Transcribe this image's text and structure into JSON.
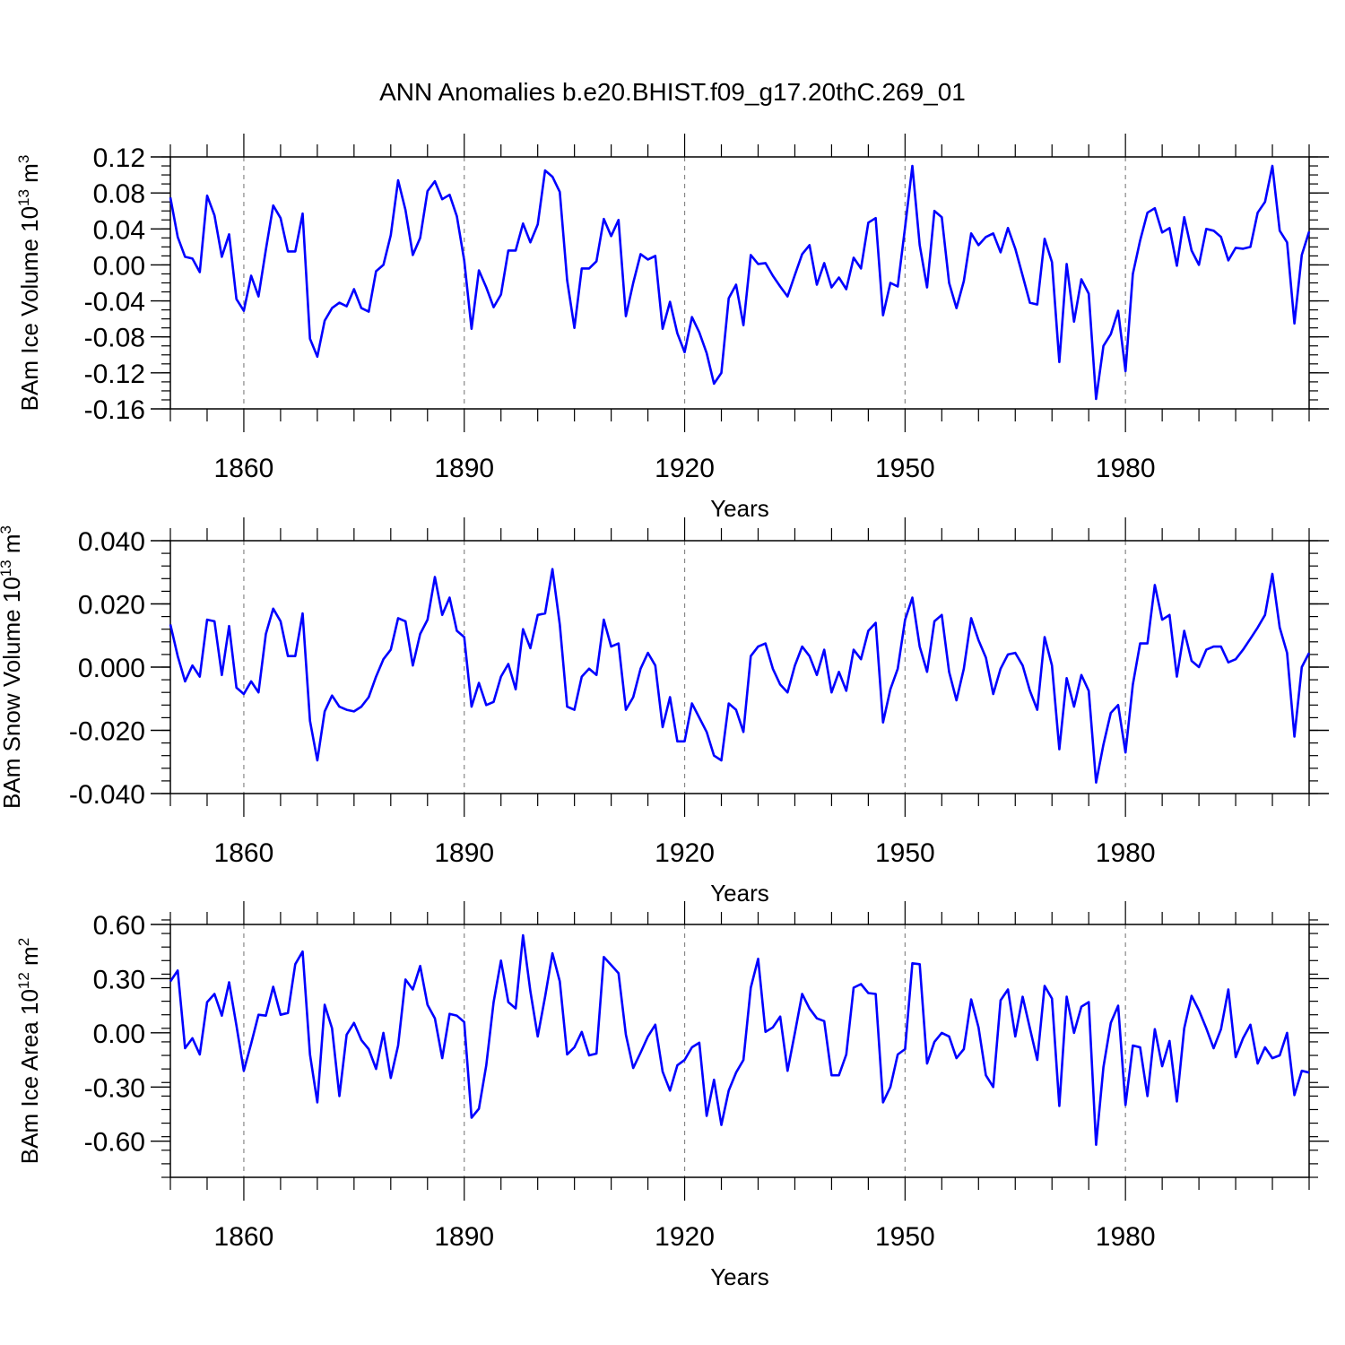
{
  "title": "ANN Anomalies b.e20.BHIST.f09_g17.20thC.269_01",
  "chart_data": [
    {
      "type": "line",
      "ylabel_main": "BAm Ice Volume 10",
      "ylabel_exp": "13",
      "ylabel_unit": " m",
      "ylabel_unit_exp": "3",
      "xlabel": "Years",
      "x_start": 1850,
      "x_end": 2005,
      "xticks": [
        1860,
        1890,
        1920,
        1950,
        1980
      ],
      "xtick_labels": [
        "1860",
        "1890",
        "1920",
        "1950",
        "1980"
      ],
      "ylim": [
        -0.16,
        0.12
      ],
      "yticks": [
        -0.16,
        -0.12,
        -0.08,
        -0.04,
        0.0,
        0.04,
        0.08,
        0.12
      ],
      "ytick_labels": [
        "-0.16",
        "-0.12",
        "-0.08",
        "-0.04",
        "0.00",
        "0.04",
        "0.08",
        "0.12"
      ],
      "yminor_step": 0.01,
      "color": "#0000ff",
      "values": [
        0.075,
        0.031,
        0.009,
        0.007,
        -0.008,
        0.077,
        0.055,
        0.009,
        0.034,
        -0.038,
        -0.051,
        -0.012,
        -0.035,
        0.017,
        0.066,
        0.052,
        0.015,
        0.015,
        0.057,
        -0.082,
        -0.102,
        -0.062,
        -0.048,
        -0.042,
        -0.046,
        -0.027,
        -0.048,
        -0.052,
        -0.007,
        0.0,
        0.033,
        0.094,
        0.061,
        0.011,
        0.03,
        0.082,
        0.093,
        0.073,
        0.078,
        0.054,
        0.005,
        -0.071,
        -0.006,
        -0.025,
        -0.047,
        -0.033,
        0.016,
        0.016,
        0.046,
        0.025,
        0.045,
        0.105,
        0.098,
        0.081,
        -0.017,
        -0.07,
        -0.004,
        -0.004,
        0.004,
        0.051,
        0.032,
        0.05,
        -0.057,
        -0.02,
        0.012,
        0.006,
        0.01,
        -0.071,
        -0.041,
        -0.076,
        -0.097,
        -0.058,
        -0.075,
        -0.098,
        -0.132,
        -0.12,
        -0.037,
        -0.022,
        -0.067,
        0.011,
        0.001,
        0.002,
        -0.012,
        -0.024,
        -0.035,
        -0.011,
        0.012,
        0.022,
        -0.022,
        0.002,
        -0.025,
        -0.014,
        -0.027,
        0.008,
        -0.004,
        0.047,
        0.052,
        -0.056,
        -0.02,
        -0.024,
        0.042,
        0.11,
        0.022,
        -0.025,
        0.06,
        0.053,
        -0.02,
        -0.048,
        -0.018,
        0.035,
        0.022,
        0.031,
        0.035,
        0.014,
        0.041,
        0.018,
        -0.012,
        -0.042,
        -0.044,
        0.029,
        0.003,
        -0.108,
        0.001,
        -0.063,
        -0.016,
        -0.032,
        -0.149,
        -0.09,
        -0.077,
        -0.051,
        -0.118,
        -0.01,
        0.027,
        0.058,
        0.063,
        0.036,
        0.041,
        -0.001,
        0.053,
        0.016,
        0.0,
        0.04,
        0.038,
        0.031,
        0.005,
        0.019,
        0.018,
        0.02,
        0.058,
        0.07,
        0.11,
        0.038,
        0.025,
        -0.065,
        0.011,
        0.037
      ]
    },
    {
      "type": "line",
      "ylabel_main": "BAm Snow Volume 10",
      "ylabel_exp": "13",
      "ylabel_unit": " m",
      "ylabel_unit_exp": "3",
      "xlabel": "Years",
      "x_start": 1850,
      "x_end": 2005,
      "xticks": [
        1860,
        1890,
        1920,
        1950,
        1980
      ],
      "xtick_labels": [
        "1860",
        "1890",
        "1920",
        "1950",
        "1980"
      ],
      "ylim": [
        -0.04,
        0.04
      ],
      "yticks": [
        -0.04,
        -0.02,
        0.0,
        0.02,
        0.04
      ],
      "ytick_labels": [
        "-0.040",
        "-0.020",
        "0.000",
        "0.020",
        "0.040"
      ],
      "yminor_step": 0.004,
      "color": "#0000ff",
      "values": [
        0.0135,
        0.0035,
        -0.0045,
        0.0005,
        -0.003,
        0.015,
        0.0145,
        -0.0025,
        0.013,
        -0.0065,
        -0.0085,
        -0.0045,
        -0.008,
        0.0105,
        0.0185,
        0.0145,
        0.0035,
        0.0035,
        0.017,
        -0.017,
        -0.0295,
        -0.014,
        -0.009,
        -0.0125,
        -0.0135,
        -0.014,
        -0.0125,
        -0.0095,
        -0.003,
        0.0025,
        0.0055,
        0.0155,
        0.0145,
        0.0005,
        0.0105,
        0.015,
        0.0285,
        0.0165,
        0.022,
        0.0115,
        0.0095,
        -0.0125,
        -0.005,
        -0.012,
        -0.011,
        -0.003,
        0.001,
        -0.007,
        0.012,
        0.006,
        0.0165,
        0.017,
        0.031,
        0.0135,
        -0.0125,
        -0.0135,
        -0.003,
        -0.0005,
        -0.0025,
        0.015,
        0.0065,
        0.0075,
        -0.0135,
        -0.0095,
        -0.0005,
        0.0045,
        0.0005,
        -0.019,
        -0.0095,
        -0.0235,
        -0.0235,
        -0.0115,
        -0.016,
        -0.0205,
        -0.028,
        -0.0295,
        -0.0115,
        -0.0135,
        -0.0205,
        0.0035,
        0.0065,
        0.0075,
        -0.0005,
        -0.0055,
        -0.008,
        0.0005,
        0.0065,
        0.0035,
        -0.0025,
        0.0055,
        -0.008,
        -0.0015,
        -0.0075,
        0.0055,
        0.0025,
        0.0115,
        0.014,
        -0.0175,
        -0.007,
        -0.0005,
        0.015,
        0.022,
        0.0065,
        -0.0015,
        0.0145,
        0.0165,
        -0.0015,
        -0.0105,
        -0.0005,
        0.0155,
        0.0085,
        0.003,
        -0.0085,
        -0.0005,
        0.004,
        0.0045,
        0.0005,
        -0.0075,
        -0.0135,
        0.0095,
        0.0005,
        -0.026,
        -0.0035,
        -0.0125,
        -0.0025,
        -0.0075,
        -0.0365,
        -0.0245,
        -0.0145,
        -0.012,
        -0.027,
        -0.0055,
        0.0075,
        0.0075,
        0.026,
        0.015,
        0.0165,
        -0.003,
        0.0115,
        0.002,
        0.0,
        0.0055,
        0.0065,
        0.0065,
        0.0015,
        0.0025,
        0.0055,
        0.009,
        0.0125,
        0.0165,
        0.0295,
        0.0125,
        0.0045,
        -0.022,
        0.0,
        0.0045
      ]
    },
    {
      "type": "line",
      "ylabel_main": "BAm Ice Area 10",
      "ylabel_exp": "12",
      "ylabel_unit": " m",
      "ylabel_unit_exp": "2",
      "xlabel": "Years",
      "x_start": 1850,
      "x_end": 2005,
      "xticks": [
        1860,
        1890,
        1920,
        1950,
        1980
      ],
      "xtick_labels": [
        "1860",
        "1890",
        "1920",
        "1950",
        "1980"
      ],
      "ylim": [
        -0.8,
        0.6
      ],
      "yticks": [
        -0.6,
        -0.3,
        0.0,
        0.3,
        0.6
      ],
      "ytick_labels": [
        "-0.60",
        "-0.30",
        "0.00",
        "0.30",
        "0.60"
      ],
      "yminor_step": 0.075,
      "color": "#0000ff",
      "values": [
        0.285,
        0.345,
        -0.085,
        -0.03,
        -0.12,
        0.17,
        0.215,
        0.095,
        0.28,
        0.04,
        -0.21,
        -0.06,
        0.1,
        0.095,
        0.255,
        0.1,
        0.11,
        0.38,
        0.45,
        -0.12,
        -0.385,
        0.155,
        0.025,
        -0.35,
        -0.01,
        0.055,
        -0.04,
        -0.09,
        -0.2,
        0.0,
        -0.25,
        -0.07,
        0.295,
        0.24,
        0.37,
        0.155,
        0.08,
        -0.14,
        0.105,
        0.095,
        0.06,
        -0.47,
        -0.42,
        -0.18,
        0.17,
        0.4,
        0.17,
        0.135,
        0.54,
        0.23,
        -0.02,
        0.2,
        0.44,
        0.285,
        -0.12,
        -0.08,
        0.005,
        -0.125,
        -0.115,
        0.42,
        0.375,
        0.33,
        -0.01,
        -0.195,
        -0.11,
        -0.02,
        0.045,
        -0.215,
        -0.32,
        -0.18,
        -0.15,
        -0.08,
        -0.055,
        -0.46,
        -0.26,
        -0.51,
        -0.32,
        -0.22,
        -0.15,
        0.25,
        0.41,
        0.005,
        0.03,
        0.09,
        -0.21,
        0.0,
        0.215,
        0.135,
        0.08,
        0.065,
        -0.235,
        -0.235,
        -0.12,
        0.25,
        0.27,
        0.22,
        0.215,
        -0.385,
        -0.3,
        -0.12,
        -0.09,
        0.385,
        0.38,
        -0.17,
        -0.05,
        0.0,
        -0.02,
        -0.14,
        -0.09,
        0.185,
        0.03,
        -0.235,
        -0.3,
        0.18,
        0.24,
        -0.02,
        0.2,
        0.025,
        -0.15,
        0.26,
        0.19,
        -0.405,
        0.2,
        0.0,
        0.145,
        0.17,
        -0.62,
        -0.19,
        0.055,
        0.15,
        -0.4,
        -0.07,
        -0.08,
        -0.35,
        0.02,
        -0.185,
        -0.045,
        -0.38,
        0.025,
        0.205,
        0.125,
        0.025,
        -0.085,
        0.02,
        0.24,
        -0.135,
        -0.03,
        0.045,
        -0.17,
        -0.08,
        -0.14,
        -0.125,
        0.0,
        -0.345,
        -0.21,
        -0.22
      ]
    }
  ]
}
